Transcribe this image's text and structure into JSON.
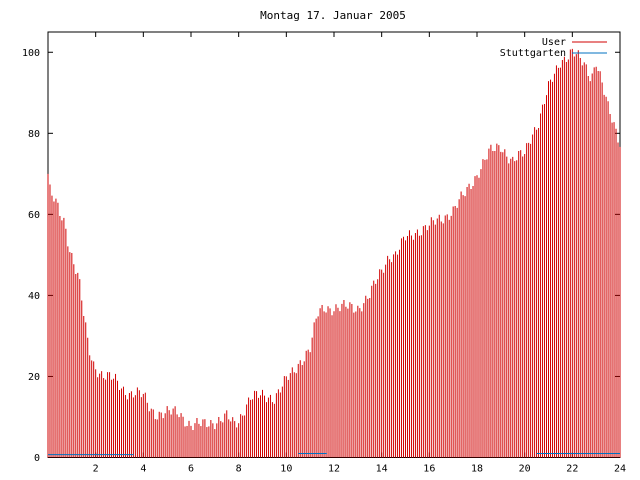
{
  "chart_data": {
    "type": "bar",
    "title": "Montag 17. Januar 2005",
    "xlim": [
      0,
      24
    ],
    "ylim": [
      0,
      105
    ],
    "x_ticks": [
      "2",
      "4",
      "6",
      "8",
      "10",
      "12",
      "14",
      "16",
      "18",
      "20",
      "22",
      "24"
    ],
    "y_ticks": [
      "0",
      "20",
      "40",
      "60",
      "80",
      "100"
    ],
    "legend_position": "top-right",
    "series": [
      {
        "name": "User",
        "color": "#d00000",
        "style": "impulses",
        "anchors_x": [
          0,
          0.1,
          0.3,
          0.5,
          0.7,
          0.9,
          1.1,
          1.3,
          1.5,
          1.7,
          1.9,
          2.2,
          2.5,
          2.8,
          3.1,
          3.4,
          3.7,
          4.0,
          4.3,
          4.5,
          5.0,
          5.5,
          6.0,
          6.5,
          7.0,
          7.5,
          7.8,
          8.0,
          8.3,
          8.5,
          9.0,
          9.5,
          10.0,
          10.3,
          10.6,
          11.0,
          11.3,
          11.6,
          12.0,
          12.5,
          13.0,
          13.5,
          14.0,
          14.3,
          14.6,
          15.0,
          15.5,
          16.0,
          16.5,
          17.0,
          17.5,
          18.0,
          18.5,
          19.0,
          19.5,
          20.0,
          20.3,
          20.6,
          21.0,
          21.5,
          22.0,
          22.5,
          22.8,
          23.0,
          23.5,
          24.0
        ],
        "anchors_y": [
          70,
          65,
          63,
          60,
          58,
          52,
          48,
          44,
          35,
          27,
          23,
          21,
          20,
          19,
          17,
          16,
          16,
          15,
          12,
          11,
          11,
          11,
          8,
          8,
          9,
          10,
          8,
          9,
          13,
          15,
          15,
          15,
          19,
          21,
          24,
          27,
          35,
          37,
          37,
          37,
          37,
          40,
          46,
          50,
          50,
          54,
          56,
          57,
          59,
          61,
          65,
          70,
          75,
          77,
          73,
          75,
          80,
          83,
          91,
          98,
          100,
          97,
          94,
          98,
          86,
          78
        ]
      },
      {
        "name": "Stuttgarten",
        "color": "#0070c0",
        "style": "lines",
        "segments": [
          [
            0,
            3.6,
            0.7
          ],
          [
            10.5,
            11.7,
            1
          ],
          [
            20.5,
            24,
            1
          ]
        ]
      }
    ]
  }
}
